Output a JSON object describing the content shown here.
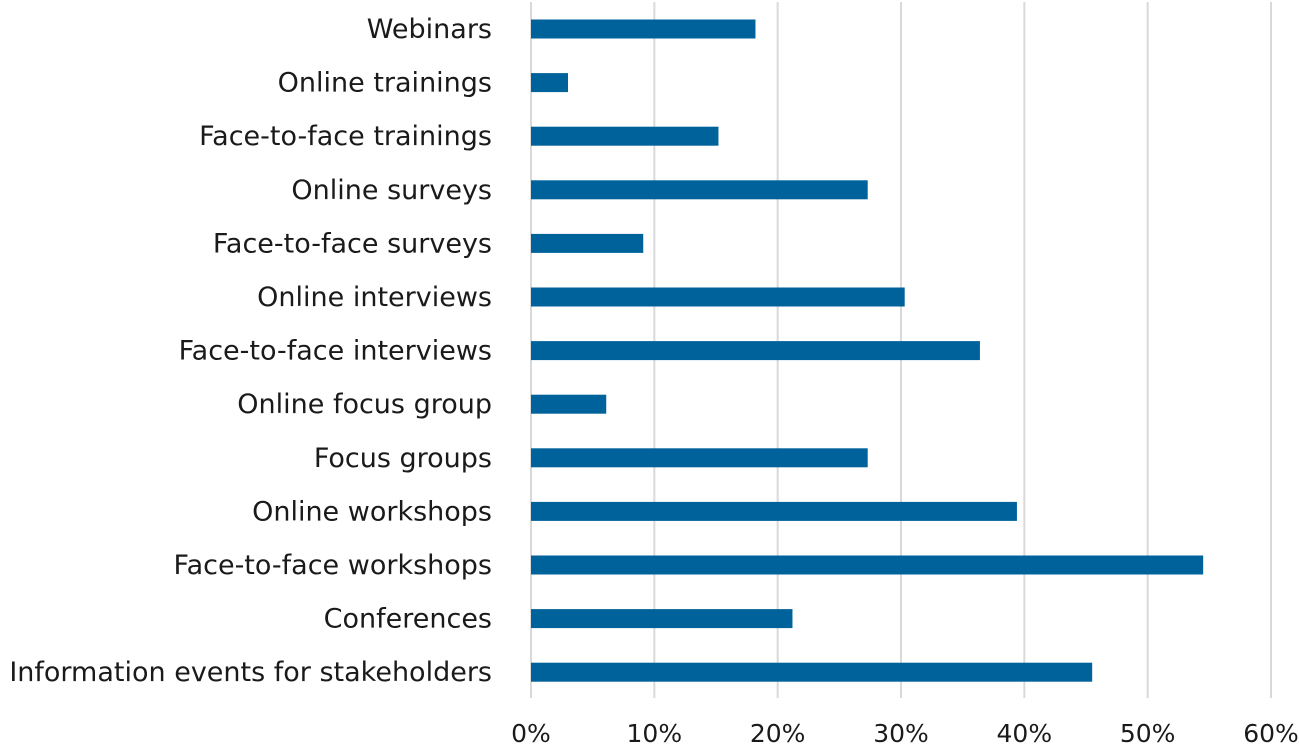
{
  "chart_data": {
    "type": "bar",
    "orientation": "horizontal",
    "title": "",
    "xlabel": "",
    "ylabel": "",
    "categories": [
      "Webinars",
      "Online trainings",
      "Face-to-face trainings",
      "Online surveys",
      "Face-to-face surveys",
      "Online interviews",
      "Face-to-face interviews",
      "Online focus group",
      "Focus groups",
      "Online workshops",
      "Face-to-face workshops",
      "Conferences",
      "Information events for stakeholders"
    ],
    "values": [
      18.2,
      3.0,
      15.2,
      27.3,
      9.1,
      30.3,
      36.4,
      6.1,
      27.3,
      39.4,
      54.5,
      21.2,
      45.5
    ],
    "xlim": [
      0,
      60
    ],
    "xticks": [
      0,
      10,
      20,
      30,
      40,
      50,
      60
    ],
    "xtick_labels": [
      "0%",
      "10%",
      "20%",
      "30%",
      "40%",
      "50%",
      "60%"
    ],
    "value_format": "percent",
    "grid": "vertical",
    "legend": "none",
    "bar_color": "#00629b"
  }
}
